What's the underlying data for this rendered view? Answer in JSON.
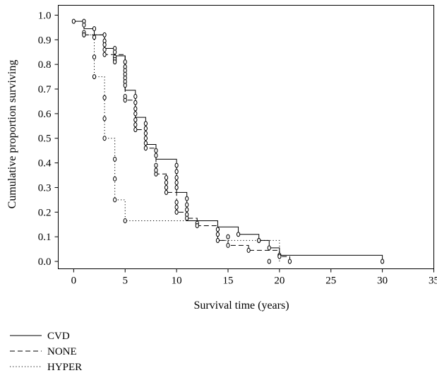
{
  "chart_data": {
    "type": "line",
    "step": true,
    "title": "",
    "xlabel": "Survival time (years)",
    "ylabel": "Cumulative proportion surviving",
    "xlim": [
      -1.5,
      35
    ],
    "ylim": [
      -0.03,
      1.04
    ],
    "x_ticks": [
      "0",
      "5",
      "10",
      "15",
      "20",
      "25",
      "30",
      "35"
    ],
    "y_ticks": [
      "0.0",
      "0.1",
      "0.2",
      "0.3",
      "0.4",
      "0.5",
      "0.6",
      "0.7",
      "0.8",
      "0.9",
      "1.0"
    ],
    "grid": false,
    "legend_position": "bottom-left",
    "series": [
      {
        "name": "CVD",
        "line_style": "solid",
        "steps": [
          [
            0,
            0.975
          ],
          [
            1,
            0.975
          ],
          [
            1,
            0.945
          ],
          [
            2,
            0.945
          ],
          [
            2,
            0.92
          ],
          [
            3,
            0.92
          ],
          [
            3,
            0.865
          ],
          [
            4,
            0.865
          ],
          [
            4,
            0.835
          ],
          [
            5,
            0.835
          ],
          [
            5,
            0.695
          ],
          [
            6,
            0.695
          ],
          [
            6,
            0.585
          ],
          [
            7,
            0.585
          ],
          [
            7,
            0.475
          ],
          [
            8,
            0.475
          ],
          [
            8,
            0.415
          ],
          [
            10,
            0.415
          ],
          [
            10,
            0.28
          ],
          [
            11,
            0.28
          ],
          [
            11,
            0.165
          ],
          [
            14,
            0.165
          ],
          [
            14,
            0.14
          ],
          [
            16,
            0.14
          ],
          [
            16,
            0.11
          ],
          [
            18,
            0.11
          ],
          [
            18,
            0.085
          ],
          [
            19,
            0.085
          ],
          [
            19,
            0.055
          ],
          [
            20,
            0.055
          ],
          [
            20,
            0.025
          ],
          [
            30,
            0.025
          ],
          [
            30,
            0.0
          ]
        ],
        "censored": [
          [
            0,
            0.975
          ],
          [
            1,
            0.975
          ],
          [
            1,
            0.96
          ],
          [
            2,
            0.945
          ],
          [
            3,
            0.92
          ],
          [
            3,
            0.895
          ],
          [
            3,
            0.88
          ],
          [
            4,
            0.865
          ],
          [
            4,
            0.85
          ],
          [
            5,
            0.81
          ],
          [
            5,
            0.79
          ],
          [
            5,
            0.775
          ],
          [
            5,
            0.76
          ],
          [
            5,
            0.745
          ],
          [
            5,
            0.73
          ],
          [
            5,
            0.715
          ],
          [
            6,
            0.67
          ],
          [
            6,
            0.645
          ],
          [
            6,
            0.62
          ],
          [
            7,
            0.56
          ],
          [
            7,
            0.54
          ],
          [
            7,
            0.52
          ],
          [
            7,
            0.5
          ],
          [
            8,
            0.45
          ],
          [
            8,
            0.43
          ],
          [
            10,
            0.39
          ],
          [
            10,
            0.365
          ],
          [
            10,
            0.34
          ],
          [
            10,
            0.32
          ],
          [
            10,
            0.3
          ],
          [
            11,
            0.255
          ],
          [
            11,
            0.23
          ],
          [
            11,
            0.21
          ],
          [
            11,
            0.19
          ],
          [
            12,
            0.155
          ],
          [
            14,
            0.13
          ],
          [
            16,
            0.11
          ],
          [
            18,
            0.085
          ],
          [
            19,
            0.055
          ],
          [
            20,
            0.025
          ],
          [
            30,
            0.0
          ]
        ]
      },
      {
        "name": "NONE",
        "line_style": "dashed",
        "steps": [
          [
            1,
            0.92
          ],
          [
            3,
            0.92
          ],
          [
            3,
            0.84
          ],
          [
            5,
            0.84
          ],
          [
            5,
            0.655
          ],
          [
            6,
            0.655
          ],
          [
            6,
            0.535
          ],
          [
            7,
            0.535
          ],
          [
            7,
            0.46
          ],
          [
            8,
            0.46
          ],
          [
            8,
            0.355
          ],
          [
            9,
            0.355
          ],
          [
            9,
            0.28
          ],
          [
            10,
            0.28
          ],
          [
            10,
            0.2
          ],
          [
            11,
            0.2
          ],
          [
            11,
            0.175
          ],
          [
            12,
            0.175
          ],
          [
            12,
            0.145
          ],
          [
            14,
            0.145
          ],
          [
            14,
            0.085
          ],
          [
            15,
            0.085
          ],
          [
            15,
            0.065
          ],
          [
            17,
            0.065
          ],
          [
            17,
            0.045
          ],
          [
            20,
            0.045
          ],
          [
            20,
            0.02
          ],
          [
            21,
            0.02
          ],
          [
            21,
            0.0
          ]
        ],
        "censored": [
          [
            1,
            0.92
          ],
          [
            1,
            0.93
          ],
          [
            2,
            0.91
          ],
          [
            3,
            0.86
          ],
          [
            3,
            0.84
          ],
          [
            4,
            0.83
          ],
          [
            4,
            0.82
          ],
          [
            4,
            0.81
          ],
          [
            5,
            0.655
          ],
          [
            5,
            0.67
          ],
          [
            6,
            0.535
          ],
          [
            6,
            0.555
          ],
          [
            6,
            0.575
          ],
          [
            6,
            0.6
          ],
          [
            7,
            0.46
          ],
          [
            7,
            0.48
          ],
          [
            8,
            0.355
          ],
          [
            8,
            0.37
          ],
          [
            8,
            0.39
          ],
          [
            9,
            0.28
          ],
          [
            9,
            0.3
          ],
          [
            9,
            0.32
          ],
          [
            9,
            0.34
          ],
          [
            10,
            0.2
          ],
          [
            10,
            0.22
          ],
          [
            10,
            0.24
          ],
          [
            11,
            0.175
          ],
          [
            12,
            0.145
          ],
          [
            14,
            0.085
          ],
          [
            14,
            0.11
          ],
          [
            15,
            0.065
          ],
          [
            17,
            0.045
          ],
          [
            19,
            0.0
          ],
          [
            20,
            0.02
          ],
          [
            21,
            0.0
          ]
        ]
      },
      {
        "name": "HYPER",
        "line_style": "dotted",
        "steps": [
          [
            1,
            0.92
          ],
          [
            2,
            0.92
          ],
          [
            2,
            0.75
          ],
          [
            3,
            0.75
          ],
          [
            3,
            0.5
          ],
          [
            4,
            0.5
          ],
          [
            4,
            0.25
          ],
          [
            5,
            0.25
          ],
          [
            5,
            0.165
          ],
          [
            11,
            0.165
          ],
          [
            11,
            0.165
          ],
          [
            14,
            0.165
          ],
          [
            14,
            0.085
          ],
          [
            19,
            0.085
          ],
          [
            19,
            0.085
          ],
          [
            20,
            0.085
          ],
          [
            20,
            0.0
          ]
        ],
        "censored": [
          [
            1,
            0.92
          ],
          [
            2,
            0.83
          ],
          [
            2,
            0.75
          ],
          [
            3,
            0.665
          ],
          [
            3,
            0.58
          ],
          [
            3,
            0.5
          ],
          [
            4,
            0.415
          ],
          [
            4,
            0.335
          ],
          [
            4,
            0.25
          ],
          [
            5,
            0.165
          ],
          [
            15,
            0.1
          ],
          [
            18,
            0.085
          ]
        ]
      }
    ]
  }
}
